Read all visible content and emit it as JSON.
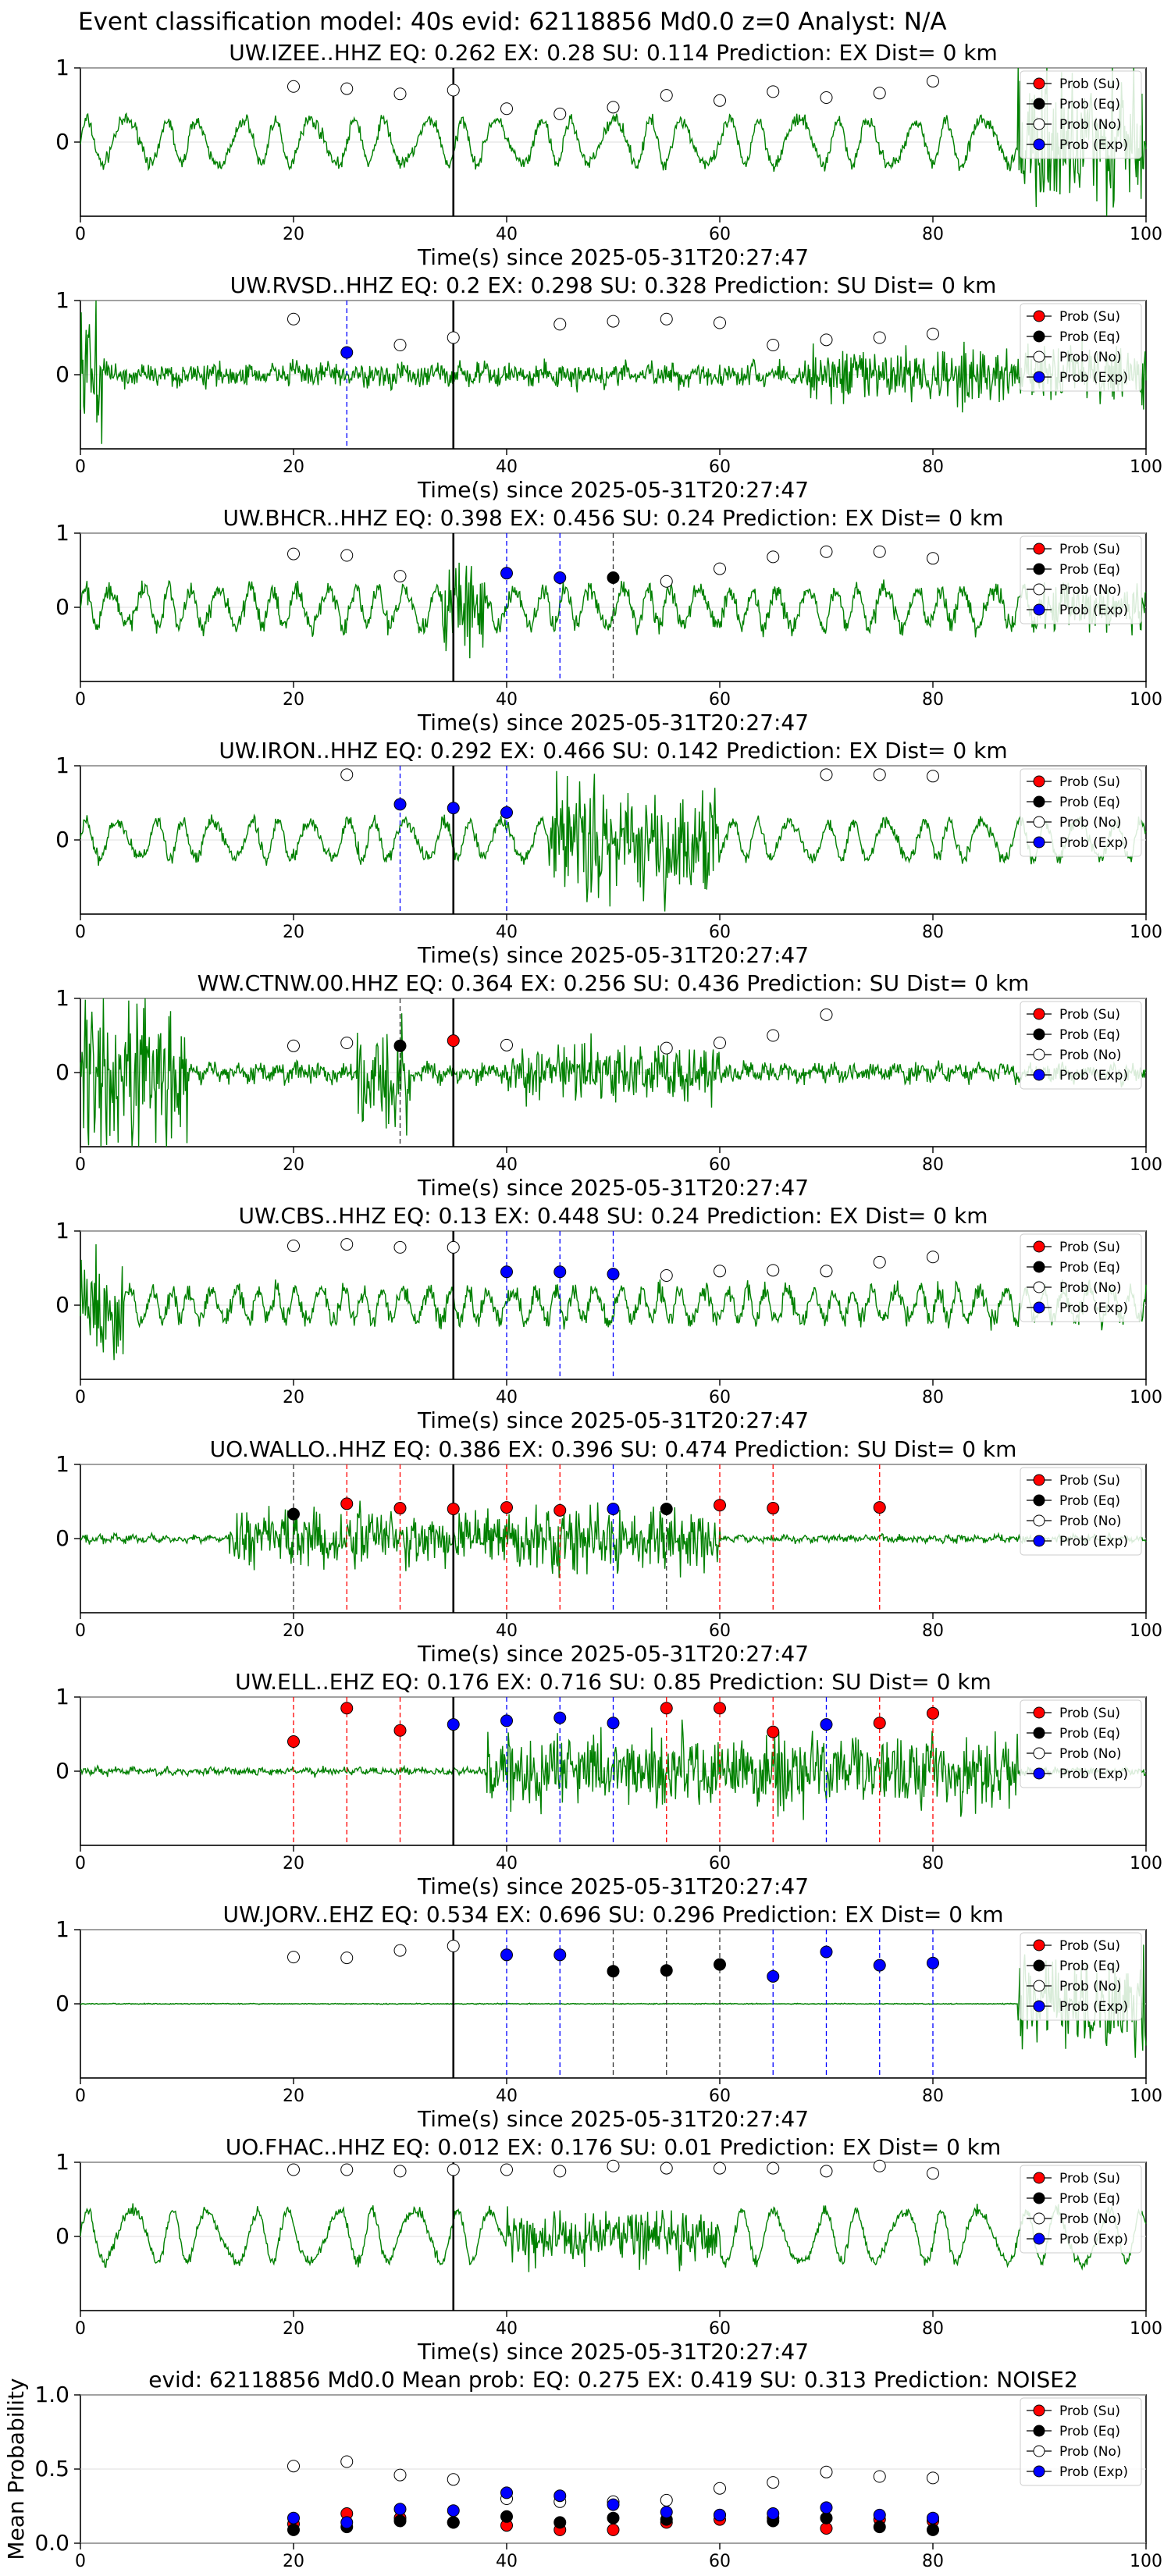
{
  "figure": {
    "suptitle": "Event classification model: 40s evid: 62118856 Md0.0 z=0 Analyst: N/A",
    "xlabel": "Time(s) since 2025-05-31T20:27:47",
    "legend": [
      "Prob (Su)",
      "Prob (Eq)",
      "Prob (No)",
      "Prob (Exp)"
    ],
    "colors": {
      "waveform": "#008000",
      "su": "#ff0000",
      "eq": "#000000",
      "no": "#ffffff",
      "exp": "#0000ff",
      "marker_line": "#000000"
    }
  },
  "chart_data": [
    {
      "type": "line",
      "title": "UW.IZEE..HHZ   EQ: 0.262  EX: 0.28  SU: 0.114   Prediction: EX    Dist= 0 km",
      "xlim": [
        0,
        100
      ],
      "ylim": [
        -1,
        1
      ],
      "xticks": [
        0,
        20,
        40,
        60,
        80,
        100
      ],
      "yticks": [
        0,
        1
      ],
      "pick_time": 35,
      "waveform": "broadband, moderate-high amplitude, high burst near 90-100 s",
      "points": [
        {
          "x": 20,
          "y": 0.75,
          "cls": "no"
        },
        {
          "x": 25,
          "y": 0.72,
          "cls": "no"
        },
        {
          "x": 30,
          "y": 0.65,
          "cls": "no"
        },
        {
          "x": 35,
          "y": 0.7,
          "cls": "no"
        },
        {
          "x": 40,
          "y": 0.45,
          "cls": "no"
        },
        {
          "x": 45,
          "y": 0.38,
          "cls": "no"
        },
        {
          "x": 50,
          "y": 0.47,
          "cls": "no"
        },
        {
          "x": 55,
          "y": 0.63,
          "cls": "no"
        },
        {
          "x": 60,
          "y": 0.56,
          "cls": "no"
        },
        {
          "x": 65,
          "y": 0.68,
          "cls": "no"
        },
        {
          "x": 70,
          "y": 0.6,
          "cls": "no"
        },
        {
          "x": 75,
          "y": 0.66,
          "cls": "no"
        },
        {
          "x": 80,
          "y": 0.82,
          "cls": "no"
        }
      ]
    },
    {
      "type": "line",
      "title": "UW.RVSD..HHZ   EQ: 0.2  EX: 0.298  SU: 0.328   Prediction: SU    Dist= 0 km",
      "xlim": [
        0,
        100
      ],
      "ylim": [
        -1,
        1
      ],
      "xticks": [
        0,
        20,
        40,
        60,
        80,
        100
      ],
      "yticks": [
        0,
        1
      ],
      "pick_time": 35,
      "points": [
        {
          "x": 20,
          "y": 0.75,
          "cls": "no"
        },
        {
          "x": 25,
          "y": 0.3,
          "cls": "exp"
        },
        {
          "x": 30,
          "y": 0.4,
          "cls": "no"
        },
        {
          "x": 35,
          "y": 0.5,
          "cls": "no"
        },
        {
          "x": 45,
          "y": 0.68,
          "cls": "no"
        },
        {
          "x": 50,
          "y": 0.72,
          "cls": "no"
        },
        {
          "x": 55,
          "y": 0.75,
          "cls": "no"
        },
        {
          "x": 60,
          "y": 0.7,
          "cls": "no"
        },
        {
          "x": 65,
          "y": 0.4,
          "cls": "no"
        },
        {
          "x": 70,
          "y": 0.47,
          "cls": "no"
        },
        {
          "x": 75,
          "y": 0.5,
          "cls": "no"
        },
        {
          "x": 80,
          "y": 0.55,
          "cls": "no"
        }
      ]
    },
    {
      "type": "line",
      "title": "UW.BHCR..HHZ   EQ: 0.398  EX: 0.456  SU: 0.24   Prediction: EX    Dist= 0 km",
      "xlim": [
        0,
        100
      ],
      "ylim": [
        -1,
        1
      ],
      "xticks": [
        0,
        20,
        40,
        60,
        80,
        100
      ],
      "yticks": [
        0,
        1
      ],
      "pick_time": 35,
      "points": [
        {
          "x": 20,
          "y": 0.72,
          "cls": "no"
        },
        {
          "x": 25,
          "y": 0.7,
          "cls": "no"
        },
        {
          "x": 30,
          "y": 0.42,
          "cls": "no"
        },
        {
          "x": 40,
          "y": 0.46,
          "cls": "exp"
        },
        {
          "x": 45,
          "y": 0.4,
          "cls": "exp"
        },
        {
          "x": 50,
          "y": 0.4,
          "cls": "eq"
        },
        {
          "x": 55,
          "y": 0.35,
          "cls": "no"
        },
        {
          "x": 60,
          "y": 0.52,
          "cls": "no"
        },
        {
          "x": 65,
          "y": 0.68,
          "cls": "no"
        },
        {
          "x": 70,
          "y": 0.75,
          "cls": "no"
        },
        {
          "x": 75,
          "y": 0.75,
          "cls": "no"
        },
        {
          "x": 80,
          "y": 0.66,
          "cls": "no"
        }
      ]
    },
    {
      "type": "line",
      "title": "UW.IRON..HHZ   EQ: 0.292  EX: 0.466  SU: 0.142   Prediction: EX    Dist= 0 km",
      "xlim": [
        0,
        100
      ],
      "ylim": [
        -1,
        1
      ],
      "xticks": [
        0,
        20,
        40,
        60,
        80,
        100
      ],
      "yticks": [
        0,
        1
      ],
      "pick_time": 35,
      "points": [
        {
          "x": 25,
          "y": 0.88,
          "cls": "no"
        },
        {
          "x": 30,
          "y": 0.48,
          "cls": "exp"
        },
        {
          "x": 35,
          "y": 0.43,
          "cls": "exp"
        },
        {
          "x": 40,
          "y": 0.37,
          "cls": "exp"
        },
        {
          "x": 70,
          "y": 0.88,
          "cls": "no"
        },
        {
          "x": 75,
          "y": 0.88,
          "cls": "no"
        },
        {
          "x": 80,
          "y": 0.86,
          "cls": "no"
        }
      ]
    },
    {
      "type": "line",
      "title": "WW.CTNW.00.HHZ   EQ: 0.364  EX: 0.256  SU: 0.436   Prediction: SU    Dist= 0 km",
      "xlim": [
        0,
        100
      ],
      "ylim": [
        -1,
        1
      ],
      "xticks": [
        0,
        20,
        40,
        60,
        80,
        100
      ],
      "yticks": [
        0,
        1
      ],
      "pick_time": 35,
      "points": [
        {
          "x": 20,
          "y": 0.36,
          "cls": "no"
        },
        {
          "x": 25,
          "y": 0.4,
          "cls": "no"
        },
        {
          "x": 30,
          "y": 0.36,
          "cls": "eq"
        },
        {
          "x": 35,
          "y": 0.43,
          "cls": "su"
        },
        {
          "x": 40,
          "y": 0.37,
          "cls": "no"
        },
        {
          "x": 55,
          "y": 0.33,
          "cls": "no"
        },
        {
          "x": 60,
          "y": 0.4,
          "cls": "no"
        },
        {
          "x": 65,
          "y": 0.5,
          "cls": "no"
        },
        {
          "x": 70,
          "y": 0.78,
          "cls": "no"
        }
      ]
    },
    {
      "type": "line",
      "title": "UW.CBS..HHZ   EQ: 0.13  EX: 0.448  SU: 0.24   Prediction: EX    Dist= 0 km",
      "xlim": [
        0,
        100
      ],
      "ylim": [
        -1,
        1
      ],
      "xticks": [
        0,
        20,
        40,
        60,
        80,
        100
      ],
      "yticks": [
        0,
        1
      ],
      "pick_time": 35,
      "points": [
        {
          "x": 20,
          "y": 0.8,
          "cls": "no"
        },
        {
          "x": 25,
          "y": 0.82,
          "cls": "no"
        },
        {
          "x": 30,
          "y": 0.78,
          "cls": "no"
        },
        {
          "x": 35,
          "y": 0.78,
          "cls": "no"
        },
        {
          "x": 40,
          "y": 0.45,
          "cls": "exp"
        },
        {
          "x": 45,
          "y": 0.45,
          "cls": "exp"
        },
        {
          "x": 50,
          "y": 0.42,
          "cls": "exp"
        },
        {
          "x": 55,
          "y": 0.4,
          "cls": "no"
        },
        {
          "x": 60,
          "y": 0.46,
          "cls": "no"
        },
        {
          "x": 65,
          "y": 0.47,
          "cls": "no"
        },
        {
          "x": 70,
          "y": 0.46,
          "cls": "no"
        },
        {
          "x": 75,
          "y": 0.58,
          "cls": "no"
        },
        {
          "x": 80,
          "y": 0.65,
          "cls": "no"
        }
      ]
    },
    {
      "type": "line",
      "title": "UO.WALLO..HHZ   EQ: 0.386  EX: 0.396  SU: 0.474   Prediction: SU    Dist= 0 km",
      "xlim": [
        0,
        100
      ],
      "ylim": [
        -1,
        1
      ],
      "xticks": [
        0,
        20,
        40,
        60,
        80,
        100
      ],
      "yticks": [
        0,
        1
      ],
      "pick_time": 35,
      "points": [
        {
          "x": 20,
          "y": 0.33,
          "cls": "eq"
        },
        {
          "x": 25,
          "y": 0.47,
          "cls": "su"
        },
        {
          "x": 30,
          "y": 0.41,
          "cls": "su"
        },
        {
          "x": 35,
          "y": 0.4,
          "cls": "su"
        },
        {
          "x": 40,
          "y": 0.42,
          "cls": "su"
        },
        {
          "x": 45,
          "y": 0.38,
          "cls": "su"
        },
        {
          "x": 50,
          "y": 0.4,
          "cls": "exp"
        },
        {
          "x": 55,
          "y": 0.4,
          "cls": "eq"
        },
        {
          "x": 60,
          "y": 0.45,
          "cls": "su"
        },
        {
          "x": 65,
          "y": 0.41,
          "cls": "su"
        },
        {
          "x": 75,
          "y": 0.42,
          "cls": "su"
        }
      ]
    },
    {
      "type": "line",
      "title": "UW.ELL..EHZ   EQ: 0.176  EX: 0.716  SU: 0.85   Prediction: SU    Dist= 0 km",
      "xlim": [
        0,
        100
      ],
      "ylim": [
        -1,
        1
      ],
      "xticks": [
        0,
        20,
        40,
        60,
        80,
        100
      ],
      "yticks": [
        0,
        1
      ],
      "pick_time": 35,
      "points": [
        {
          "x": 20,
          "y": 0.4,
          "cls": "su"
        },
        {
          "x": 25,
          "y": 0.85,
          "cls": "su"
        },
        {
          "x": 30,
          "y": 0.55,
          "cls": "su"
        },
        {
          "x": 35,
          "y": 0.63,
          "cls": "exp"
        },
        {
          "x": 40,
          "y": 0.68,
          "cls": "exp"
        },
        {
          "x": 45,
          "y": 0.72,
          "cls": "exp"
        },
        {
          "x": 50,
          "y": 0.65,
          "cls": "exp"
        },
        {
          "x": 55,
          "y": 0.85,
          "cls": "su"
        },
        {
          "x": 60,
          "y": 0.85,
          "cls": "su"
        },
        {
          "x": 65,
          "y": 0.53,
          "cls": "su"
        },
        {
          "x": 70,
          "y": 0.63,
          "cls": "exp"
        },
        {
          "x": 75,
          "y": 0.65,
          "cls": "su"
        },
        {
          "x": 80,
          "y": 0.78,
          "cls": "su"
        }
      ]
    },
    {
      "type": "line",
      "title": "UW.JORV..EHZ   EQ: 0.534  EX: 0.696  SU: 0.296   Prediction: EX    Dist= 0 km",
      "xlim": [
        0,
        100
      ],
      "ylim": [
        -1,
        1
      ],
      "xticks": [
        0,
        20,
        40,
        60,
        80,
        100
      ],
      "yticks": [
        0,
        1
      ],
      "pick_time": 35,
      "points": [
        {
          "x": 20,
          "y": 0.63,
          "cls": "no"
        },
        {
          "x": 25,
          "y": 0.62,
          "cls": "no"
        },
        {
          "x": 30,
          "y": 0.72,
          "cls": "no"
        },
        {
          "x": 35,
          "y": 0.78,
          "cls": "no"
        },
        {
          "x": 40,
          "y": 0.66,
          "cls": "exp"
        },
        {
          "x": 45,
          "y": 0.66,
          "cls": "exp"
        },
        {
          "x": 50,
          "y": 0.44,
          "cls": "eq"
        },
        {
          "x": 55,
          "y": 0.45,
          "cls": "eq"
        },
        {
          "x": 60,
          "y": 0.53,
          "cls": "eq"
        },
        {
          "x": 65,
          "y": 0.37,
          "cls": "exp"
        },
        {
          "x": 70,
          "y": 0.7,
          "cls": "exp"
        },
        {
          "x": 75,
          "y": 0.52,
          "cls": "exp"
        },
        {
          "x": 80,
          "y": 0.55,
          "cls": "exp"
        }
      ]
    },
    {
      "type": "line",
      "title": "UO.FHAC..HHZ   EQ: 0.012  EX: 0.176  SU: 0.01   Prediction: EX    Dist= 0 km",
      "xlim": [
        0,
        100
      ],
      "ylim": [
        -1,
        1
      ],
      "xticks": [
        0,
        20,
        40,
        60,
        80,
        100
      ],
      "yticks": [
        0,
        1
      ],
      "pick_time": 35,
      "points": [
        {
          "x": 20,
          "y": 0.9,
          "cls": "no"
        },
        {
          "x": 25,
          "y": 0.9,
          "cls": "no"
        },
        {
          "x": 30,
          "y": 0.88,
          "cls": "no"
        },
        {
          "x": 35,
          "y": 0.9,
          "cls": "no"
        },
        {
          "x": 40,
          "y": 0.9,
          "cls": "no"
        },
        {
          "x": 45,
          "y": 0.88,
          "cls": "no"
        },
        {
          "x": 50,
          "y": 0.95,
          "cls": "no"
        },
        {
          "x": 55,
          "y": 0.92,
          "cls": "no"
        },
        {
          "x": 60,
          "y": 0.92,
          "cls": "no"
        },
        {
          "x": 65,
          "y": 0.92,
          "cls": "no"
        },
        {
          "x": 70,
          "y": 0.88,
          "cls": "no"
        },
        {
          "x": 75,
          "y": 0.95,
          "cls": "no"
        },
        {
          "x": 80,
          "y": 0.85,
          "cls": "no"
        }
      ]
    },
    {
      "type": "scatter",
      "title": "evid: 62118856  Md0.0   Mean prob:   EQ: 0.275  EX: 0.419  SU: 0.313   Prediction: NOISE2",
      "ylabel": "Mean Probability",
      "xlim": [
        0,
        100
      ],
      "ylim": [
        0,
        1
      ],
      "xticks": [
        0,
        20,
        40,
        60,
        80,
        100
      ],
      "yticks": [
        0.0,
        0.5,
        1.0
      ],
      "x": [
        20,
        25,
        30,
        35,
        40,
        45,
        50,
        55,
        60,
        65,
        70,
        75,
        80
      ],
      "series": [
        {
          "name": "Prob (Su)",
          "cls": "su",
          "values": [
            0.13,
            0.2,
            0.17,
            0.14,
            0.12,
            0.09,
            0.09,
            0.14,
            0.16,
            0.17,
            0.1,
            0.16,
            0.15
          ]
        },
        {
          "name": "Prob (Eq)",
          "cls": "eq",
          "values": [
            0.09,
            0.11,
            0.15,
            0.14,
            0.18,
            0.14,
            0.17,
            0.16,
            0.19,
            0.15,
            0.17,
            0.11,
            0.09
          ]
        },
        {
          "name": "Prob (No)",
          "cls": "no",
          "values": [
            0.52,
            0.55,
            0.46,
            0.43,
            0.3,
            0.28,
            0.28,
            0.29,
            0.37,
            0.41,
            0.48,
            0.45,
            0.44
          ]
        },
        {
          "name": "Prob (Exp)",
          "cls": "exp",
          "values": [
            0.17,
            0.14,
            0.23,
            0.22,
            0.34,
            0.32,
            0.26,
            0.21,
            0.19,
            0.2,
            0.24,
            0.19,
            0.17
          ]
        }
      ]
    }
  ]
}
